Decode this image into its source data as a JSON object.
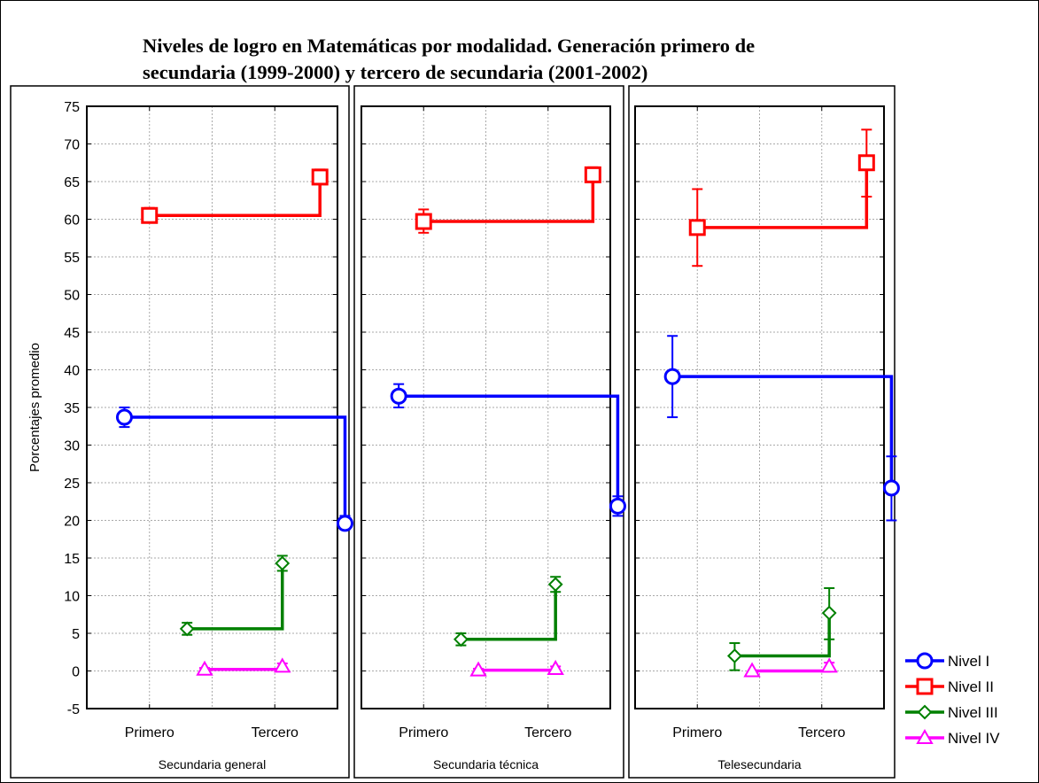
{
  "chart_data": {
    "type": "line",
    "title_line1": "Niveles de logro en Matemáticas por modalidad. Generación primero de",
    "title_line2": "secundaria (1999-2000) y tercero de secundaria (2001-2002)",
    "ylabel": "Porcentajes promedio",
    "ylim": [
      -5,
      75
    ],
    "yticks": [
      -5,
      0,
      5,
      10,
      15,
      20,
      25,
      30,
      35,
      40,
      45,
      50,
      55,
      60,
      65,
      70,
      75
    ],
    "categories": [
      "Primero",
      "Tercero"
    ],
    "grid": true,
    "legend_position": "right",
    "panels": [
      {
        "name": "Secundaria general",
        "series": [
          {
            "name": "Nivel I",
            "values": [
              33.7,
              19.6
            ],
            "err_low": [
              32.4,
              18.8
            ],
            "err_high": [
              35.0,
              20.6
            ]
          },
          {
            "name": "Nivel II",
            "values": [
              60.5,
              65.6
            ],
            "err_low": [
              59.6,
              64.8
            ],
            "err_high": [
              61.5,
              66.6
            ]
          },
          {
            "name": "Nivel III",
            "values": [
              5.6,
              14.3
            ],
            "err_low": [
              4.8,
              13.3
            ],
            "err_high": [
              6.4,
              15.3
            ]
          },
          {
            "name": "Nivel IV",
            "values": [
              0.2,
              0.6
            ],
            "err_low": [
              0.0,
              0.2
            ],
            "err_high": [
              0.4,
              1.0
            ]
          }
        ]
      },
      {
        "name": "Secundaria técnica",
        "series": [
          {
            "name": "Nivel I",
            "values": [
              36.5,
              21.9
            ],
            "err_low": [
              35.0,
              20.6
            ],
            "err_high": [
              38.1,
              23.2
            ]
          },
          {
            "name": "Nivel II",
            "values": [
              59.7,
              65.9
            ],
            "err_low": [
              58.2,
              65.0
            ],
            "err_high": [
              61.3,
              66.9
            ]
          },
          {
            "name": "Nivel III",
            "values": [
              4.2,
              11.5
            ],
            "err_low": [
              3.4,
              10.5
            ],
            "err_high": [
              5.0,
              12.5
            ]
          },
          {
            "name": "Nivel IV",
            "values": [
              0.1,
              0.3
            ],
            "err_low": [
              0.0,
              0.0
            ],
            "err_high": [
              0.3,
              0.6
            ]
          }
        ]
      },
      {
        "name": "Telesecundaria",
        "series": [
          {
            "name": "Nivel I",
            "values": [
              39.1,
              24.3
            ],
            "err_low": [
              33.7,
              20.0
            ],
            "err_high": [
              44.5,
              28.5
            ]
          },
          {
            "name": "Nivel II",
            "values": [
              58.9,
              67.5
            ],
            "err_low": [
              53.8,
              63.0
            ],
            "err_high": [
              64.0,
              71.9
            ]
          },
          {
            "name": "Nivel III",
            "values": [
              2.0,
              7.7
            ],
            "err_low": [
              0.1,
              4.2
            ],
            "err_high": [
              3.7,
              11.0
            ]
          },
          {
            "name": "Nivel IV",
            "values": [
              0.0,
              0.6
            ],
            "err_low": [
              0.0,
              0.2
            ],
            "err_high": [
              0.0,
              1.1
            ]
          }
        ]
      }
    ],
    "legend": [
      {
        "name": "Nivel I",
        "color": "#0000ff",
        "marker": "circle"
      },
      {
        "name": "Nivel II",
        "color": "#ff0000",
        "marker": "square"
      },
      {
        "name": "Nivel III",
        "color": "#008000",
        "marker": "diamond"
      },
      {
        "name": "Nivel IV",
        "color": "#ff00ff",
        "marker": "triangle"
      }
    ]
  }
}
